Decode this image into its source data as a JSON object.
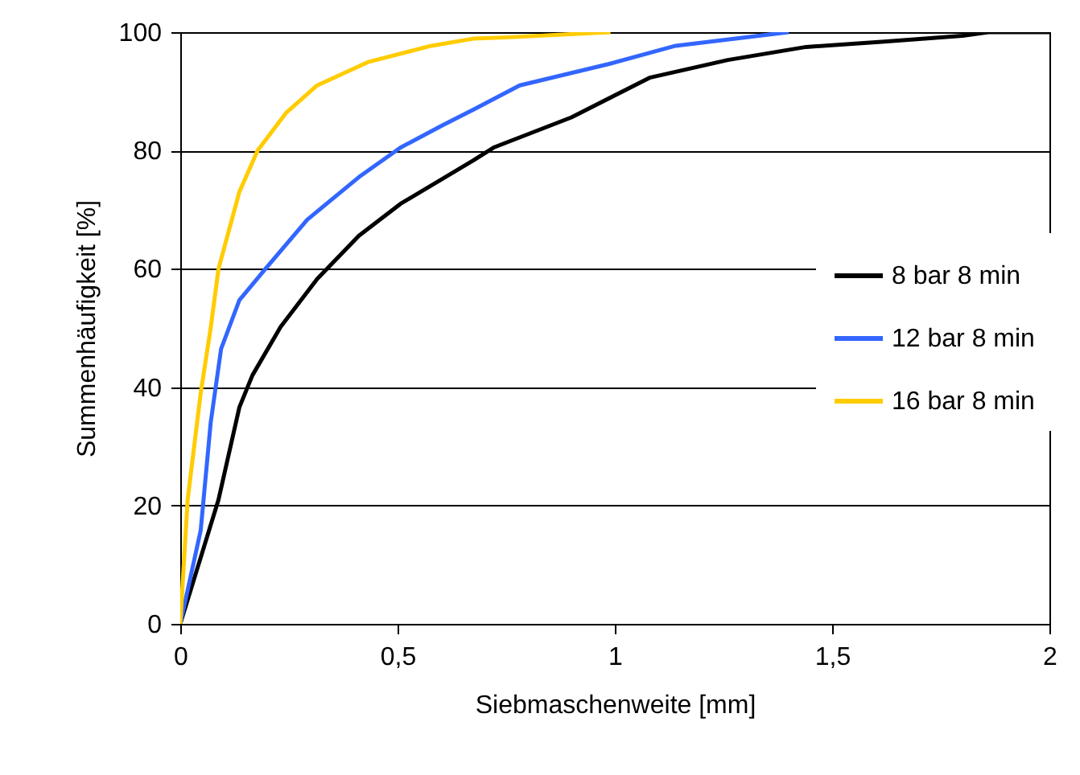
{
  "chart_data": {
    "type": "line",
    "xlabel": "Siebmaschenweite [mm]",
    "ylabel": "Summenhäufigkeit [%]",
    "xlim": [
      0,
      2
    ],
    "xticks": [
      0,
      {
        "value": 0.5,
        "label": "0,5"
      },
      1,
      {
        "value": 1.5,
        "label": "1,5"
      },
      2
    ],
    "ylim": [
      0,
      100
    ],
    "yticks": [
      0,
      20,
      40,
      60,
      80,
      100
    ],
    "grid": "y",
    "legend": "right",
    "marker": "none",
    "line_style": "solid",
    "series": [
      {
        "name": "8 bar 8 min",
        "color": "#000000",
        "x": [
          0,
          0.088,
          0.136,
          0.166,
          0.231,
          0.315,
          0.411,
          0.507,
          0.674,
          0.721,
          0.9,
          1.08,
          1.26,
          1.44,
          1.62,
          1.8,
          1.86,
          2
        ],
        "values": [
          0,
          21,
          36.6,
          42,
          50.2,
          58.3,
          65.6,
          71,
          78.3,
          80.5,
          85.6,
          92.3,
          95.3,
          97.5,
          98.4,
          99.4,
          100,
          100
        ]
      },
      {
        "name": "12 bar 8 min",
        "color": "#3366ff",
        "x": [
          0,
          0.047,
          0.07,
          0.094,
          0.136,
          0.196,
          0.292,
          0.411,
          0.507,
          0.602,
          0.674,
          0.781,
          0.985,
          1.14,
          1.4
        ],
        "values": [
          0,
          15.8,
          34,
          46.5,
          54.7,
          60,
          68.3,
          75.5,
          80.5,
          84.2,
          86.9,
          91,
          94.6,
          97.7,
          100
        ]
      },
      {
        "name": "16 bar 8 min",
        "color": "#ffcc00",
        "x": [
          0,
          0.017,
          0.047,
          0.07,
          0.088,
          0.136,
          0.178,
          0.244,
          0.315,
          0.434,
          0.578,
          0.674,
          0.746,
          0.99
        ],
        "values": [
          0,
          21,
          39,
          50,
          60,
          73,
          80,
          86.4,
          91,
          95,
          97.7,
          98.9,
          99.1,
          100
        ]
      }
    ]
  }
}
